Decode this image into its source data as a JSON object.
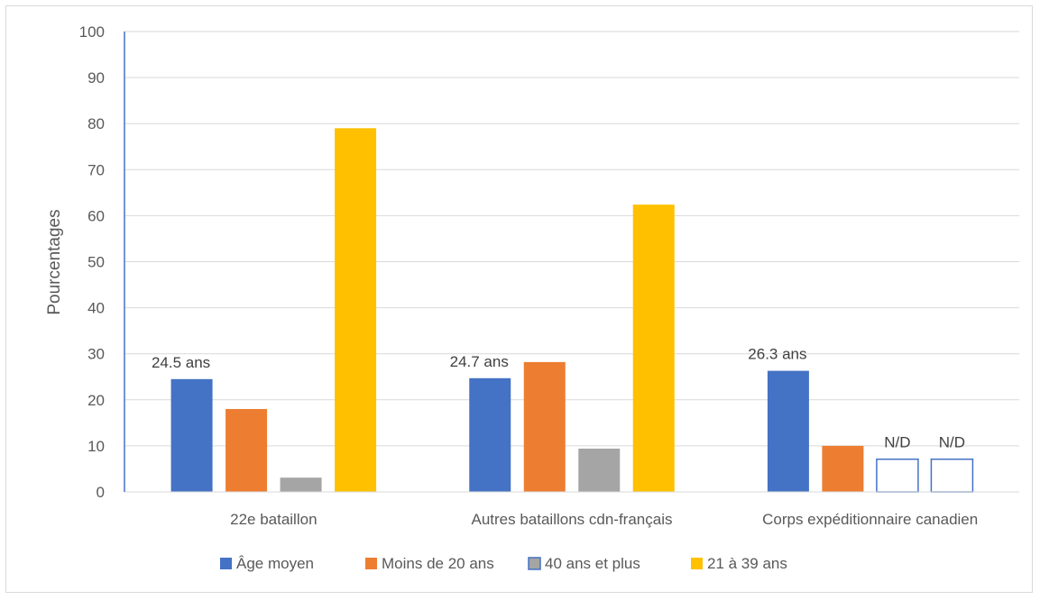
{
  "chart_data": {
    "type": "bar",
    "title": "",
    "xlabel": "",
    "ylabel": "Pourcentages",
    "ylim": [
      0,
      100
    ],
    "yticks": [
      "0",
      "10",
      "20",
      "30",
      "40",
      "50",
      "60",
      "70",
      "80",
      "90",
      "100"
    ],
    "grid": true,
    "legend_position": "bottom",
    "categories": [
      "22e bataillon",
      "Autres bataillons cdn-français",
      "Corps expéditionnaire canadien"
    ],
    "series": [
      {
        "name": "Âge moyen",
        "color": "#4472c4",
        "values": [
          24.5,
          24.7,
          26.3
        ],
        "labels": [
          "24.5 ans",
          "24.7 ans",
          "26.3 ans"
        ]
      },
      {
        "name": "Moins de 20 ans",
        "color": "#ed7d31",
        "values": [
          18,
          28.2,
          10
        ],
        "labels": [
          "",
          "",
          ""
        ]
      },
      {
        "name": "40 ans et plus",
        "color": "#a5a5a5",
        "values": [
          3.1,
          9.4,
          7.1
        ],
        "labels": [
          "",
          "",
          "N/D"
        ],
        "outlined": [
          false,
          false,
          true
        ]
      },
      {
        "name": "21 à 39 ans",
        "color": "#ffc000",
        "values": [
          79,
          62.4,
          7.1
        ],
        "labels": [
          "",
          "",
          "N/D"
        ],
        "outlined": [
          false,
          false,
          true
        ]
      }
    ]
  }
}
